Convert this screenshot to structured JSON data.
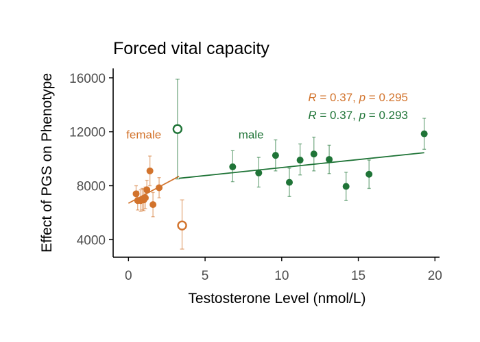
{
  "chart_data": {
    "type": "scatter",
    "title": "Forced vital capacity",
    "xlabel": "Testosterone Level (nmol/L)",
    "ylabel": "Effect of PGS on Phenotype",
    "xlim": [
      -1,
      20.3
    ],
    "ylim": [
      2700,
      16700
    ],
    "x_ticks": [
      0,
      5,
      10,
      15,
      20
    ],
    "y_ticks": [
      4000,
      8000,
      12000,
      16000
    ],
    "grid": false,
    "series": [
      {
        "name": "female",
        "color": "#d2732c",
        "points": [
          {
            "x": 0.5,
            "y": 7400,
            "ylo": 6800,
            "yhi": 8000
          },
          {
            "x": 0.6,
            "y": 6900,
            "ylo": 6200,
            "yhi": 7600
          },
          {
            "x": 0.8,
            "y": 6900,
            "ylo": 6100,
            "yhi": 7700
          },
          {
            "x": 0.9,
            "y": 7000,
            "ylo": 6200,
            "yhi": 7800
          },
          {
            "x": 1.0,
            "y": 6950,
            "ylo": 6150,
            "yhi": 7750
          },
          {
            "x": 1.1,
            "y": 7100,
            "ylo": 6300,
            "yhi": 7900
          },
          {
            "x": 1.2,
            "y": 7700,
            "ylo": 7000,
            "yhi": 8400
          },
          {
            "x": 1.4,
            "y": 9100,
            "ylo": 8000,
            "yhi": 10200
          },
          {
            "x": 1.6,
            "y": 6600,
            "ylo": 5700,
            "yhi": 7500
          },
          {
            "x": 2.0,
            "y": 7850,
            "ylo": 7100,
            "yhi": 8600
          }
        ],
        "outlier": {
          "x": 3.5,
          "y": 5050,
          "ylo": 3300,
          "yhi": 6950
        },
        "fit": {
          "x": [
            0,
            3.3
          ],
          "y": [
            6700,
            8700
          ]
        }
      },
      {
        "name": "male",
        "color": "#1f7437",
        "points": [
          {
            "x": 6.8,
            "y": 9400,
            "ylo": 8300,
            "yhi": 10600
          },
          {
            "x": 8.5,
            "y": 8950,
            "ylo": 7900,
            "yhi": 10100
          },
          {
            "x": 9.6,
            "y": 10250,
            "ylo": 9100,
            "yhi": 11400
          },
          {
            "x": 10.5,
            "y": 8250,
            "ylo": 7200,
            "yhi": 9300
          },
          {
            "x": 11.2,
            "y": 9900,
            "ylo": 8800,
            "yhi": 11100
          },
          {
            "x": 12.1,
            "y": 10350,
            "ylo": 9100,
            "yhi": 11600
          },
          {
            "x": 13.1,
            "y": 9950,
            "ylo": 8900,
            "yhi": 11000
          },
          {
            "x": 14.2,
            "y": 7950,
            "ylo": 6900,
            "yhi": 9000
          },
          {
            "x": 15.7,
            "y": 8850,
            "ylo": 7800,
            "yhi": 9900
          },
          {
            "x": 19.3,
            "y": 11850,
            "ylo": 10700,
            "yhi": 13000
          }
        ],
        "outlier": {
          "x": 3.2,
          "y": 12200,
          "ylo": 8500,
          "yhi": 15900
        },
        "fit": {
          "x": [
            3.3,
            19.3
          ],
          "y": [
            8550,
            10450
          ]
        }
      }
    ],
    "group_labels": [
      {
        "text": "female",
        "x": 1.0,
        "y": 11800,
        "color": "#d2732c"
      },
      {
        "text": "male",
        "x": 8.0,
        "y": 11800,
        "color": "#1f7437"
      }
    ],
    "annotations": [
      {
        "r_label": "R",
        "r_value": " = 0.37, ",
        "p_label": "p",
        "p_value": " = 0.295",
        "color": "#d2732c"
      },
      {
        "r_label": "R",
        "r_value": " = 0.37, ",
        "p_label": "p",
        "p_value": " = 0.293",
        "color": "#1f7437"
      }
    ]
  }
}
